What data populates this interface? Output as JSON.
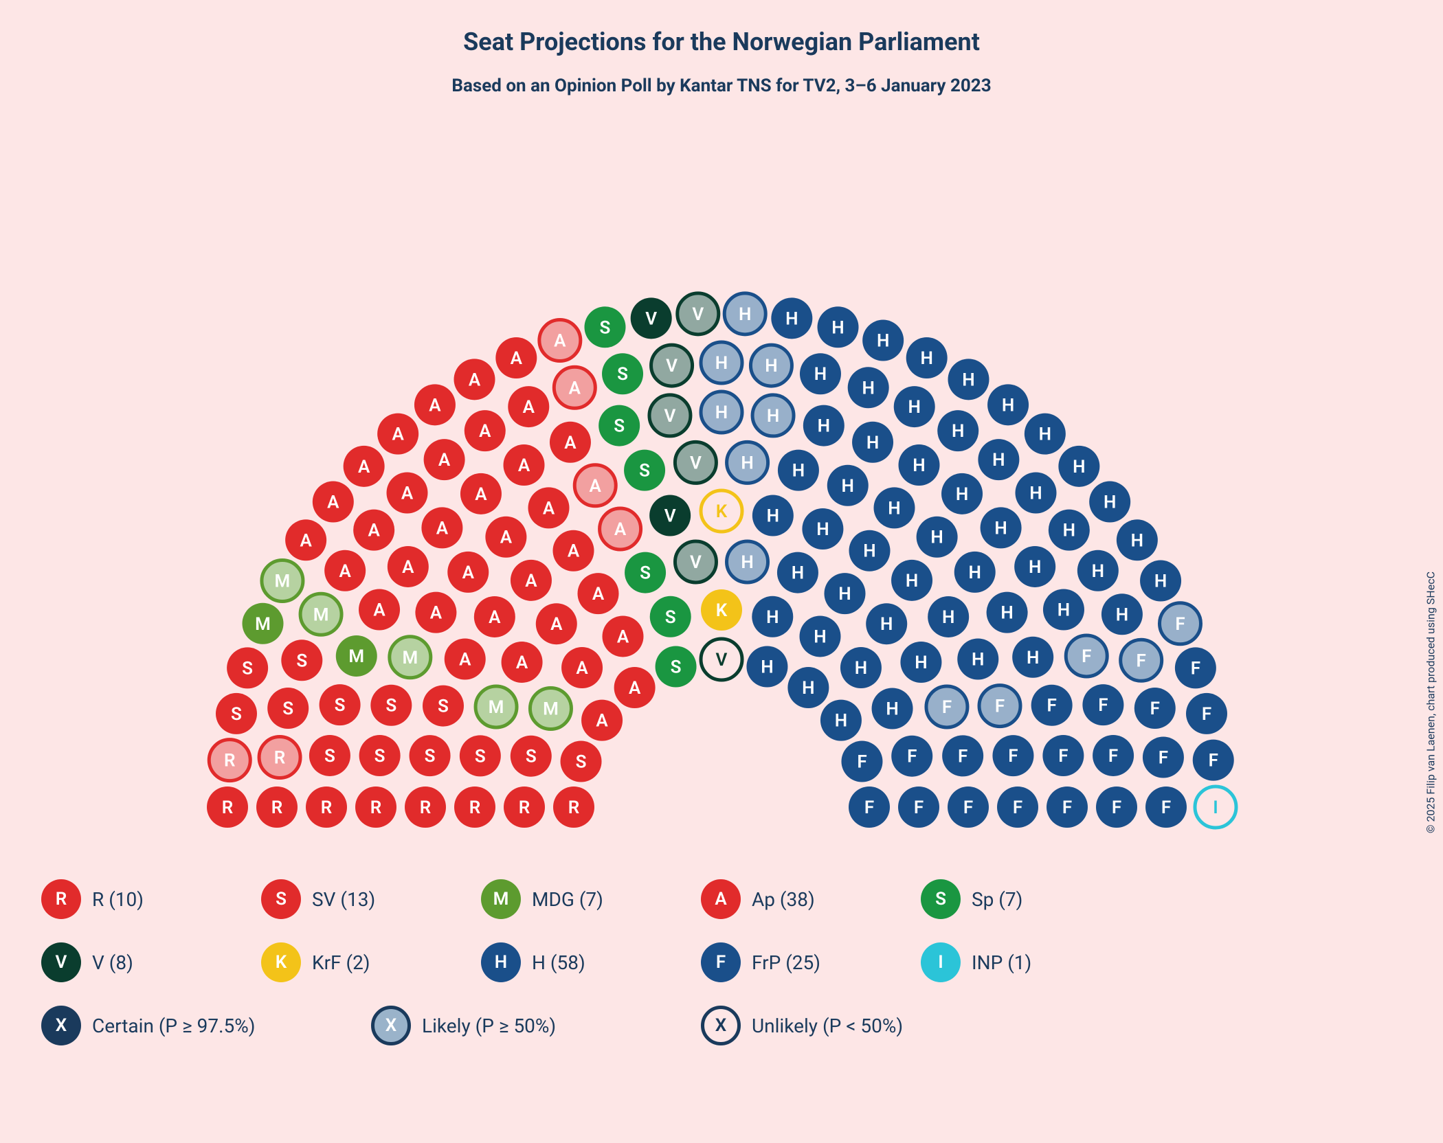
{
  "title": "Seat Projections for the Norwegian Parliament",
  "subtitle": "Based on an Opinion Poll by Kantar TNS for TV2, 3–6 January 2023",
  "copyright": "© 2025 Filip van Laenen, chart produced using SHecC",
  "colors": {
    "bg": "#fde6e6",
    "text": "#1a3a5c",
    "R": "#e12b2b",
    "SV": "#e12b2b",
    "MDG": "#5d9b2f",
    "Ap": "#e12b2b",
    "Sp": "#1a9641",
    "V": "#0a3d2e",
    "KrF": "#f3c319",
    "H": "#1a4f8a",
    "FrP": "#1a4f8a",
    "INP": "#2bc4d8",
    "certain": "#1a3a5c",
    "likely_border": "#1a3a5c",
    "likely_fill": "#9ab3ca",
    "unlikely_border": "#1a3a5c",
    "unlikely_fill": "#ffffff",
    "white": "#ffffff"
  },
  "chart": {
    "seat_r": 30,
    "row_gap": 72,
    "inner_radius": 215,
    "rows": 8,
    "total_seats": 169,
    "seats_per_row": [
      11,
      13,
      16,
      19,
      22,
      25,
      29,
      34
    ]
  },
  "parties": [
    {
      "key": "R",
      "letter": "R",
      "label": "R",
      "count": 10,
      "color": "#e12b2b"
    },
    {
      "key": "SV",
      "letter": "S",
      "label": "SV",
      "count": 13,
      "color": "#e12b2b"
    },
    {
      "key": "MDG",
      "letter": "M",
      "label": "MDG",
      "count": 7,
      "color": "#5d9b2f"
    },
    {
      "key": "Ap",
      "letter": "A",
      "label": "Ap",
      "count": 38,
      "color": "#e12b2b"
    },
    {
      "key": "Sp",
      "letter": "S",
      "label": "Sp",
      "count": 7,
      "color": "#1a9641"
    },
    {
      "key": "V",
      "letter": "V",
      "label": "V",
      "count": 8,
      "color": "#0a3d2e"
    },
    {
      "key": "KrF",
      "letter": "K",
      "label": "KrF",
      "count": 2,
      "color": "#f3c319"
    },
    {
      "key": "H",
      "letter": "H",
      "label": "H",
      "count": 58,
      "color": "#1a4f8a"
    },
    {
      "key": "FrP",
      "letter": "F",
      "label": "FrP",
      "count": 25,
      "color": "#1a4f8a"
    },
    {
      "key": "INP",
      "letter": "I",
      "label": "INP",
      "count": 1,
      "color": "#2bc4d8"
    }
  ],
  "probabilities": [
    {
      "key": "certain",
      "label": "Certain (P ≥ 97.5%)",
      "letter": "X"
    },
    {
      "key": "likely",
      "label": "Likely (P ≥ 50%)",
      "letter": "X"
    },
    {
      "key": "unlikely",
      "label": "Unlikely (P < 50%)",
      "letter": "X"
    }
  ],
  "seat_order": [
    {
      "p": "R",
      "s": "certain",
      "n": 8
    },
    {
      "p": "R",
      "s": "likely",
      "n": 2
    },
    {
      "p": "SV",
      "s": "certain",
      "n": 13
    },
    {
      "p": "MDG",
      "s": "certain",
      "n": 2
    },
    {
      "p": "MDG",
      "s": "likely",
      "n": 5
    },
    {
      "p": "Ap",
      "s": "certain",
      "n": 34
    },
    {
      "p": "Ap",
      "s": "likely",
      "n": 4
    },
    {
      "p": "Sp",
      "s": "certain",
      "n": 7
    },
    {
      "p": "V",
      "s": "certain",
      "n": 2
    },
    {
      "p": "V",
      "s": "likely",
      "n": 5
    },
    {
      "p": "V",
      "s": "unlikely",
      "n": 1
    },
    {
      "p": "KrF",
      "s": "certain",
      "n": 1
    },
    {
      "p": "KrF",
      "s": "unlikely",
      "n": 1
    },
    {
      "p": "H",
      "s": "likely",
      "n": 7
    },
    {
      "p": "H",
      "s": "certain",
      "n": 51
    },
    {
      "p": "FrP",
      "s": "likely",
      "n": 5
    },
    {
      "p": "FrP",
      "s": "certain",
      "n": 20
    },
    {
      "p": "INP",
      "s": "unlikely",
      "n": 1
    }
  ]
}
